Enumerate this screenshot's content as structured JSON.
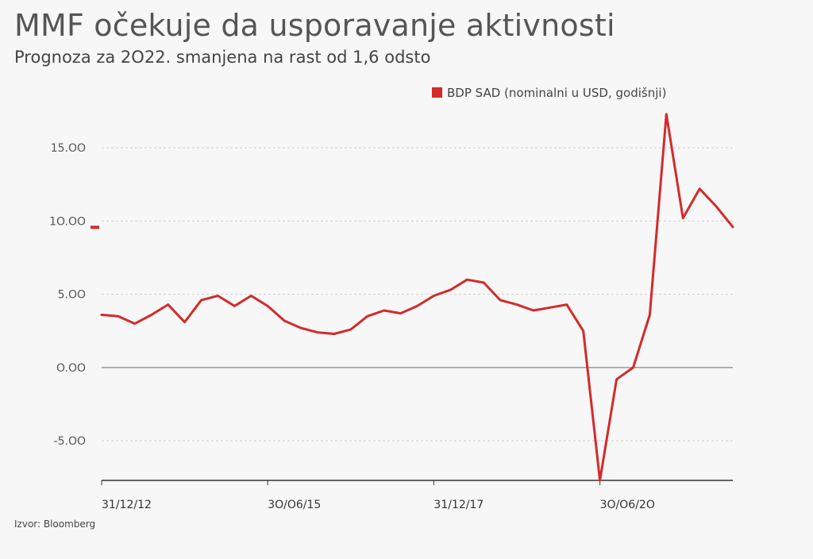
{
  "title": "MMF očekuje da usporavanje aktivnosti",
  "subtitle": "Prognoza za 2O22. smanjena na rast od 1,6 odsto",
  "source": "Izvor: Bloomberg",
  "colors": {
    "series": "#d42a2a",
    "grid": "#cfcfcf",
    "zero": "#9a9a9a",
    "axis": "#333333"
  },
  "chart_data": {
    "type": "line",
    "xlabel": "",
    "ylabel": "",
    "ylim": [
      -7.7,
      17.5
    ],
    "y_ticks": [
      15,
      10,
      5,
      0,
      -5
    ],
    "y_tick_labels": [
      "15.OO",
      "1O.OO",
      "5.OO",
      "O.OO",
      "-5.OO"
    ],
    "x_tick_labels": [
      "31/12/12",
      "3O/O6/15",
      "31/12/17",
      "3O/O6/2O"
    ],
    "grid": true,
    "legend": "top-right",
    "series": [
      {
        "name": "BDP SAD (nominalni u USD, godišnji)",
        "values": [
          3.6,
          3.5,
          3.0,
          3.6,
          4.3,
          3.1,
          4.6,
          4.9,
          4.2,
          4.9,
          4.2,
          3.2,
          2.7,
          2.4,
          2.3,
          2.6,
          3.5,
          3.9,
          3.7,
          4.2,
          4.9,
          5.3,
          6.0,
          5.8,
          4.6,
          4.3,
          3.9,
          4.1,
          4.3,
          2.5,
          -7.7,
          -0.8,
          0.0,
          3.6,
          17.3,
          10.2,
          12.2,
          11.0,
          9.6
        ]
      }
    ]
  }
}
